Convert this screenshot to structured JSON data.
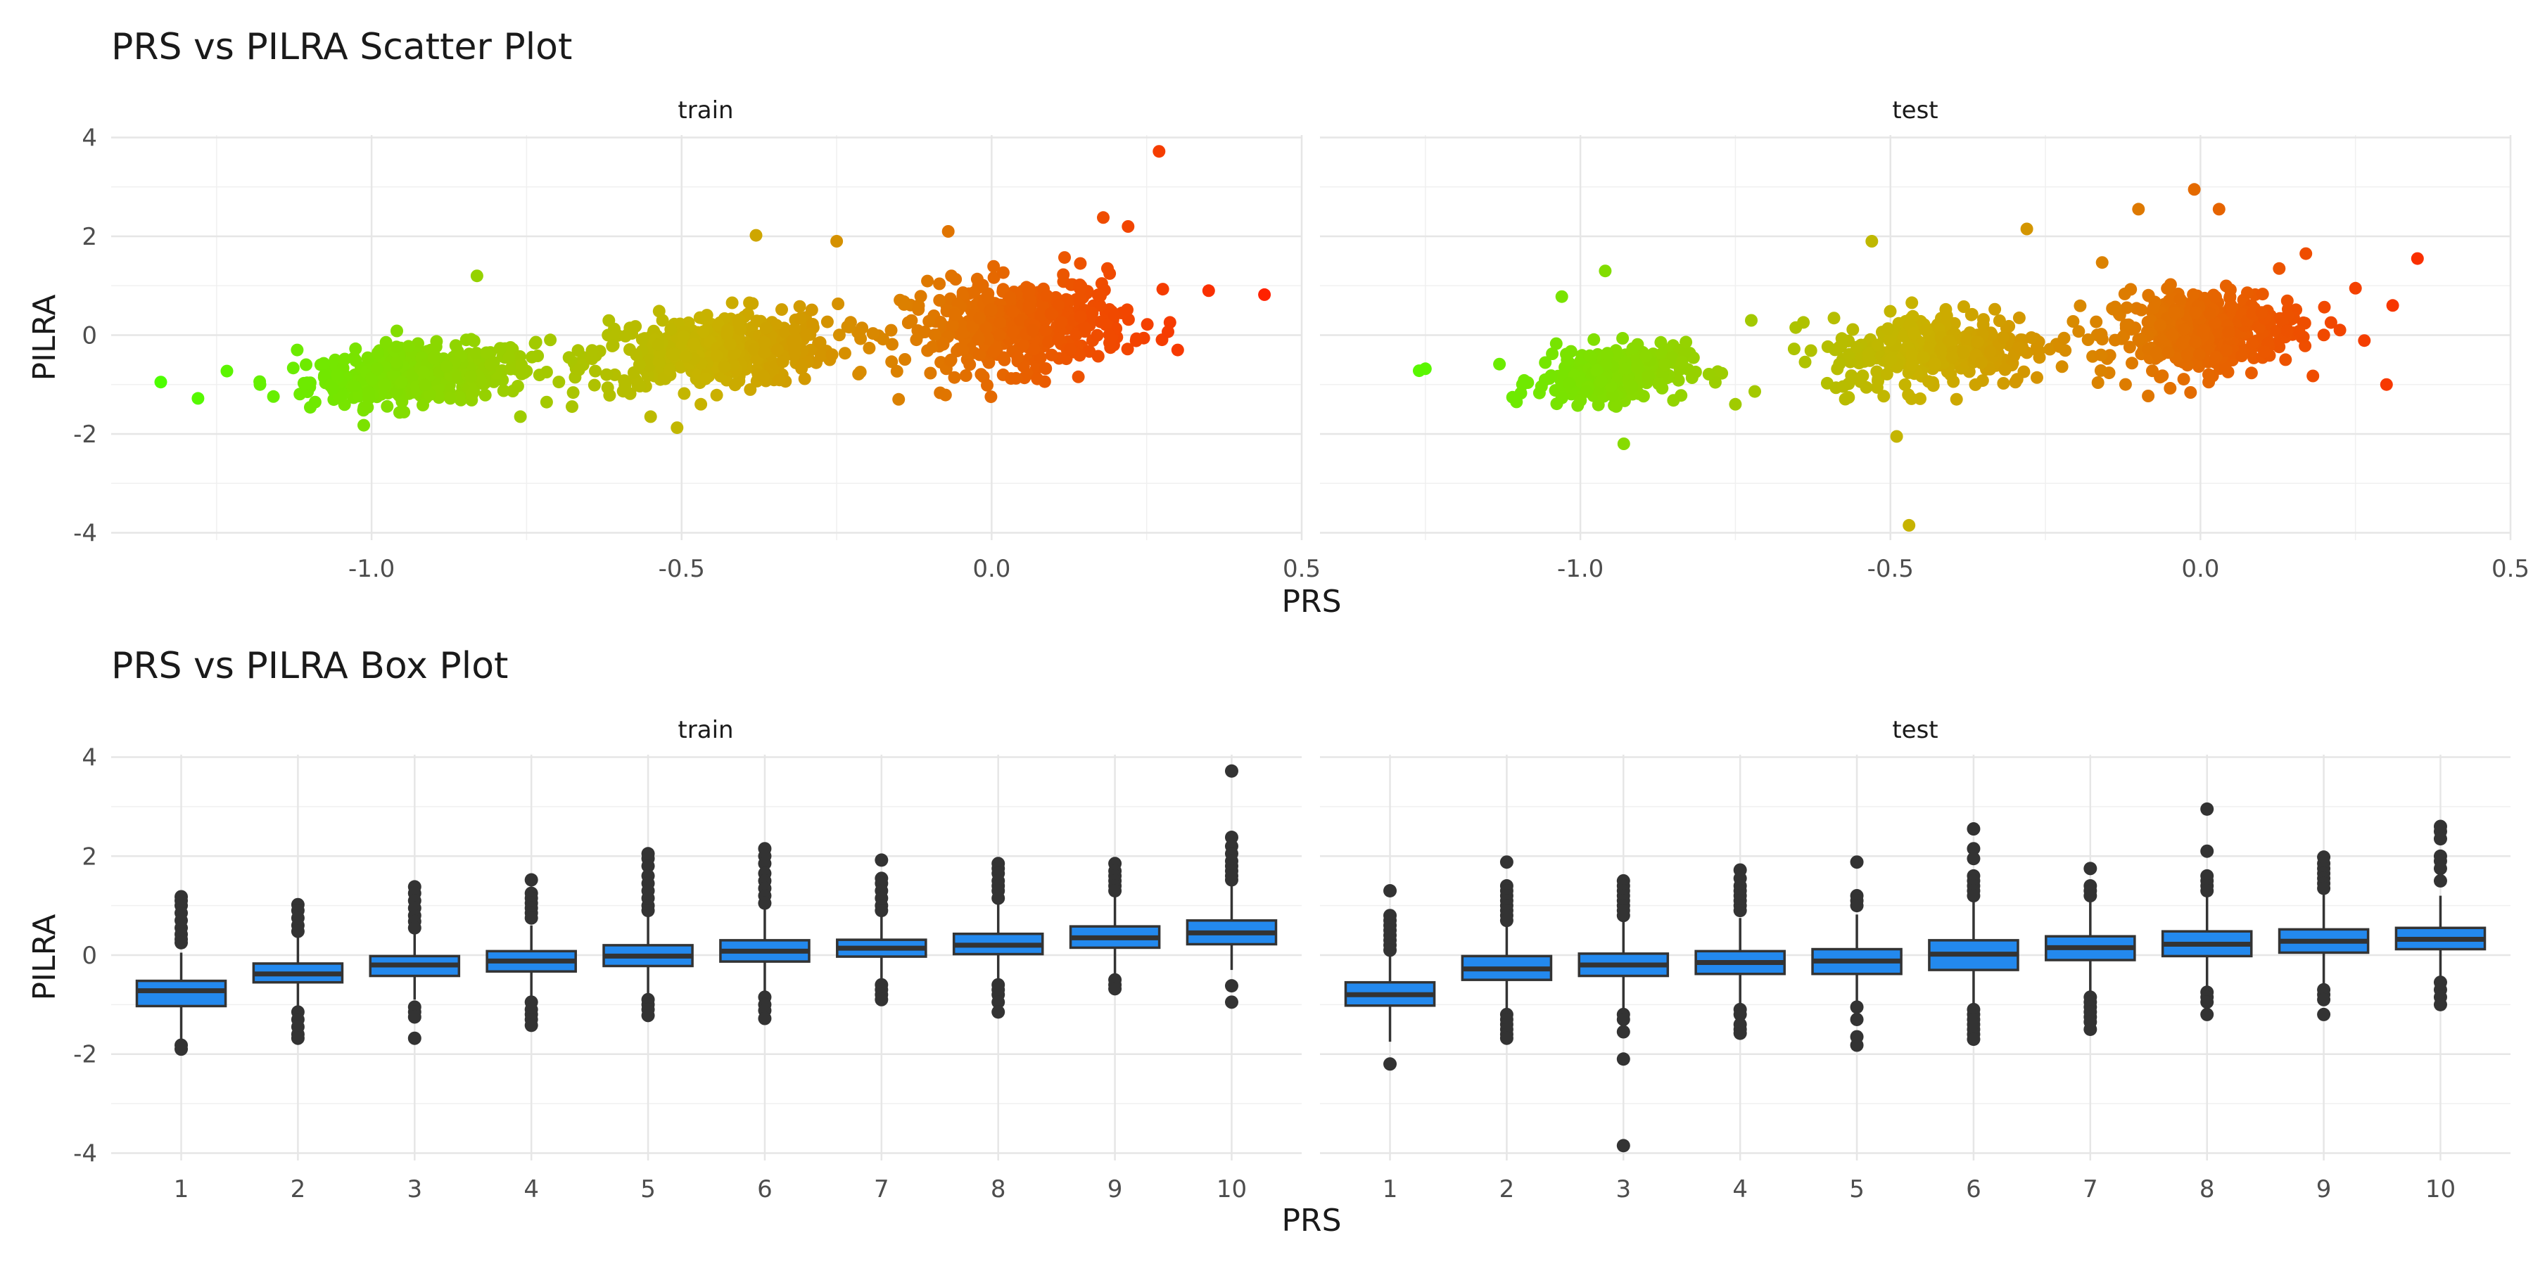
{
  "chart_data": [
    {
      "type": "scatter",
      "title": "PRS vs PILRA Scatter Plot",
      "xlabel": "PRS",
      "ylabel": "PILRA",
      "xlim": [
        -1.42,
        0.5
      ],
      "ylim": [
        -4.15,
        4.05
      ],
      "xticks": [
        -1.0,
        -0.5,
        0.0,
        0.5
      ],
      "xtick_labels": [
        "-1.0",
        "-0.5",
        "0.0",
        "0.5"
      ],
      "yticks": [
        -4,
        -2,
        0,
        2,
        4
      ],
      "ytick_labels": [
        "-4",
        "-2",
        "0",
        "2",
        "4"
      ],
      "grid": true,
      "legend": "none",
      "color_scale": {
        "low": "#4cff00",
        "mid": "#c9b200",
        "high": "#ff2200",
        "by": "PRS"
      },
      "panels": [
        {
          "name": "train",
          "clusters": [
            {
              "center": [
                -0.92,
                -0.8
              ],
              "spread": [
                0.09,
                0.28
              ],
              "n": 420
            },
            {
              "center": [
                -0.45,
                -0.3
              ],
              "spread": [
                0.1,
                0.38
              ],
              "n": 420
            },
            {
              "center": [
                0.04,
                0.2
              ],
              "spread": [
                0.09,
                0.45
              ],
              "n": 460
            }
          ],
          "points": [
            [
              -1.34,
              -0.95
            ],
            [
              -1.28,
              -1.28
            ],
            [
              0.27,
              3.72
            ],
            [
              0.44,
              0.82
            ],
            [
              -0.38,
              2.02
            ],
            [
              0.22,
              2.2
            ],
            [
              0.18,
              2.38
            ],
            [
              -1.18,
              -1.0
            ],
            [
              -0.15,
              -1.3
            ],
            [
              0.35,
              0.9
            ],
            [
              -0.76,
              -1.65
            ],
            [
              -0.55,
              -1.65
            ],
            [
              0.3,
              -0.3
            ],
            [
              -1.12,
              -0.3
            ],
            [
              -0.83,
              1.2
            ],
            [
              -0.07,
              2.1
            ],
            [
              -0.25,
              1.9
            ]
          ]
        },
        {
          "name": "test",
          "clusters": [
            {
              "center": [
                -0.95,
                -0.8
              ],
              "spread": [
                0.06,
                0.28
              ],
              "n": 260
            },
            {
              "center": [
                -0.42,
                -0.3
              ],
              "spread": [
                0.09,
                0.4
              ],
              "n": 320
            },
            {
              "center": [
                0.0,
                0.1
              ],
              "spread": [
                0.08,
                0.42
              ],
              "n": 380
            }
          ],
          "points": [
            [
              -1.26,
              -0.72
            ],
            [
              -1.25,
              -0.68
            ],
            [
              -0.47,
              -3.85
            ],
            [
              -0.01,
              2.95
            ],
            [
              -0.1,
              2.55
            ],
            [
              0.03,
              2.55
            ],
            [
              0.35,
              1.55
            ],
            [
              0.3,
              -1.0
            ],
            [
              -0.96,
              1.3
            ],
            [
              -1.03,
              0.78
            ],
            [
              -0.93,
              -2.2
            ],
            [
              -0.49,
              -2.05
            ],
            [
              -0.28,
              2.15
            ],
            [
              0.17,
              1.65
            ],
            [
              -0.53,
              1.9
            ],
            [
              -0.75,
              -1.4
            ],
            [
              0.31,
              0.6
            ],
            [
              0.25,
              0.95
            ]
          ]
        }
      ]
    },
    {
      "type": "box",
      "title": "PRS vs PILRA Box Plot",
      "xlabel": "PRS",
      "ylabel": "PILRA",
      "categories": [
        "1",
        "2",
        "3",
        "4",
        "5",
        "6",
        "7",
        "8",
        "9",
        "10"
      ],
      "ylim": [
        -4.15,
        4.05
      ],
      "yticks": [
        -4,
        -2,
        0,
        2,
        4
      ],
      "ytick_labels": [
        "-4",
        "-2",
        "0",
        "2",
        "4"
      ],
      "fill_color": "#2389ee",
      "grid": true,
      "panels": [
        {
          "name": "train",
          "boxes": [
            {
              "q1": -1.03,
              "median": -0.72,
              "q3": -0.52,
              "lower": -1.7,
              "upper": 0.05,
              "outliers": [
                1.18,
                1.1,
                1.0,
                0.85,
                0.7,
                0.55,
                0.42,
                0.32,
                0.25,
                -1.82,
                -1.9
              ]
            },
            {
              "q1": -0.55,
              "median": -0.38,
              "q3": -0.17,
              "lower": -1.05,
              "upper": 0.35,
              "outliers": [
                1.02,
                0.9,
                0.75,
                0.6,
                0.48,
                -1.15,
                -1.3,
                -1.45,
                -1.6,
                -1.68
              ]
            },
            {
              "q1": -0.42,
              "median": -0.2,
              "q3": -0.02,
              "lower": -0.9,
              "upper": 0.45,
              "outliers": [
                1.38,
                1.25,
                1.1,
                0.95,
                0.8,
                0.68,
                0.55,
                -1.05,
                -1.15,
                -1.25,
                -1.68
              ]
            },
            {
              "q1": -0.33,
              "median": -0.12,
              "q3": 0.08,
              "lower": -0.85,
              "upper": 0.6,
              "outliers": [
                1.52,
                1.25,
                1.15,
                1.05,
                0.95,
                0.85,
                0.75,
                -0.95,
                -1.1,
                -1.2,
                -1.3,
                -1.42
              ]
            },
            {
              "q1": -0.22,
              "median": -0.02,
              "q3": 0.2,
              "lower": -0.8,
              "upper": 0.8,
              "outliers": [
                2.05,
                1.95,
                1.8,
                1.6,
                1.45,
                1.3,
                1.15,
                1.0,
                0.9,
                -0.9,
                -1.0,
                -1.1,
                -1.22
              ]
            },
            {
              "q1": -0.13,
              "median": 0.08,
              "q3": 0.3,
              "lower": -0.75,
              "upper": 0.92,
              "outliers": [
                2.15,
                2.0,
                1.85,
                1.65,
                1.5,
                1.35,
                1.2,
                1.05,
                -0.85,
                -1.0,
                -1.12,
                -1.28
              ]
            },
            {
              "q1": -0.03,
              "median": 0.14,
              "q3": 0.31,
              "lower": -0.55,
              "upper": 0.82,
              "outliers": [
                1.92,
                1.55,
                1.45,
                1.3,
                1.15,
                1.0,
                0.9,
                -0.6,
                -0.7,
                -0.8,
                -0.9
              ]
            },
            {
              "q1": 0.02,
              "median": 0.2,
              "q3": 0.43,
              "lower": -0.55,
              "upper": 1.05,
              "outliers": [
                1.85,
                1.75,
                1.65,
                1.5,
                1.4,
                1.3,
                1.15,
                -0.6,
                -0.7,
                -0.8,
                -0.95,
                -1.15
              ]
            },
            {
              "q1": 0.15,
              "median": 0.35,
              "q3": 0.58,
              "lower": -0.45,
              "upper": 1.2,
              "outliers": [
                1.85,
                1.7,
                1.6,
                1.5,
                1.4,
                1.3,
                -0.5,
                -0.6,
                -0.68
              ]
            },
            {
              "q1": 0.22,
              "median": 0.45,
              "q3": 0.7,
              "lower": -0.3,
              "upper": 1.45,
              "outliers": [
                3.72,
                2.38,
                2.2,
                2.05,
                1.9,
                1.8,
                1.7,
                1.6,
                1.52,
                -0.62,
                -0.95
              ]
            }
          ]
        },
        {
          "name": "test",
          "boxes": [
            {
              "q1": -1.02,
              "median": -0.8,
              "q3": -0.55,
              "lower": -1.75,
              "upper": 0.0,
              "outliers": [
                1.3,
                0.8,
                0.7,
                0.6,
                0.5,
                0.4,
                0.3,
                0.2,
                0.1,
                -2.2
              ]
            },
            {
              "q1": -0.5,
              "median": -0.28,
              "q3": -0.02,
              "lower": -1.1,
              "upper": 0.65,
              "outliers": [
                1.88,
                1.4,
                1.3,
                1.2,
                1.1,
                1.0,
                0.9,
                0.8,
                0.7,
                -1.2,
                -1.3,
                -1.4,
                -1.5,
                -1.6,
                -1.68
              ]
            },
            {
              "q1": -0.42,
              "median": -0.2,
              "q3": 0.03,
              "lower": -1.1,
              "upper": 0.7,
              "outliers": [
                1.5,
                1.4,
                1.3,
                1.2,
                1.1,
                1.0,
                0.9,
                0.8,
                -1.2,
                -1.3,
                -1.55,
                -2.1,
                -3.85
              ]
            },
            {
              "q1": -0.38,
              "median": -0.15,
              "q3": 0.08,
              "lower": -1.05,
              "upper": 0.75,
              "outliers": [
                1.72,
                1.55,
                1.4,
                1.3,
                1.2,
                1.1,
                1.0,
                0.9,
                -1.1,
                -1.2,
                -1.4,
                -1.5,
                -1.58
              ]
            },
            {
              "q1": -0.38,
              "median": -0.12,
              "q3": 0.12,
              "lower": -1.05,
              "upper": 0.82,
              "outliers": [
                1.88,
                1.2,
                1.1,
                1.0,
                -1.05,
                -1.3,
                -1.65,
                -1.82
              ]
            },
            {
              "q1": -0.3,
              "median": 0.02,
              "q3": 0.3,
              "lower": -1.05,
              "upper": 1.1,
              "outliers": [
                2.55,
                2.15,
                1.95,
                1.6,
                1.5,
                1.4,
                1.3,
                1.2,
                -1.1,
                -1.2,
                -1.3,
                -1.4,
                -1.5,
                -1.6,
                -1.7
              ]
            },
            {
              "q1": -0.1,
              "median": 0.15,
              "q3": 0.38,
              "lower": -0.8,
              "upper": 1.1,
              "outliers": [
                1.75,
                1.4,
                1.3,
                1.2,
                -0.85,
                -0.95,
                -1.05,
                -1.15,
                -1.25,
                -1.35,
                -1.5
              ]
            },
            {
              "q1": -0.02,
              "median": 0.22,
              "q3": 0.48,
              "lower": -0.7,
              "upper": 1.2,
              "outliers": [
                2.95,
                2.1,
                1.6,
                1.5,
                1.4,
                1.3,
                -0.75,
                -0.85,
                -0.95,
                -1.2
              ]
            },
            {
              "q1": 0.05,
              "median": 0.28,
              "q3": 0.52,
              "lower": -0.6,
              "upper": 1.25,
              "outliers": [
                1.98,
                1.85,
                1.75,
                1.65,
                1.55,
                1.45,
                1.35,
                -0.7,
                -0.8,
                -0.9,
                -1.2
              ]
            },
            {
              "q1": 0.12,
              "median": 0.32,
              "q3": 0.55,
              "lower": -0.45,
              "upper": 1.2,
              "outliers": [
                2.6,
                2.5,
                2.35,
                2.0,
                1.9,
                1.75,
                1.5,
                -0.55,
                -0.7,
                -0.85,
                -1.0
              ]
            }
          ]
        }
      ]
    }
  ]
}
